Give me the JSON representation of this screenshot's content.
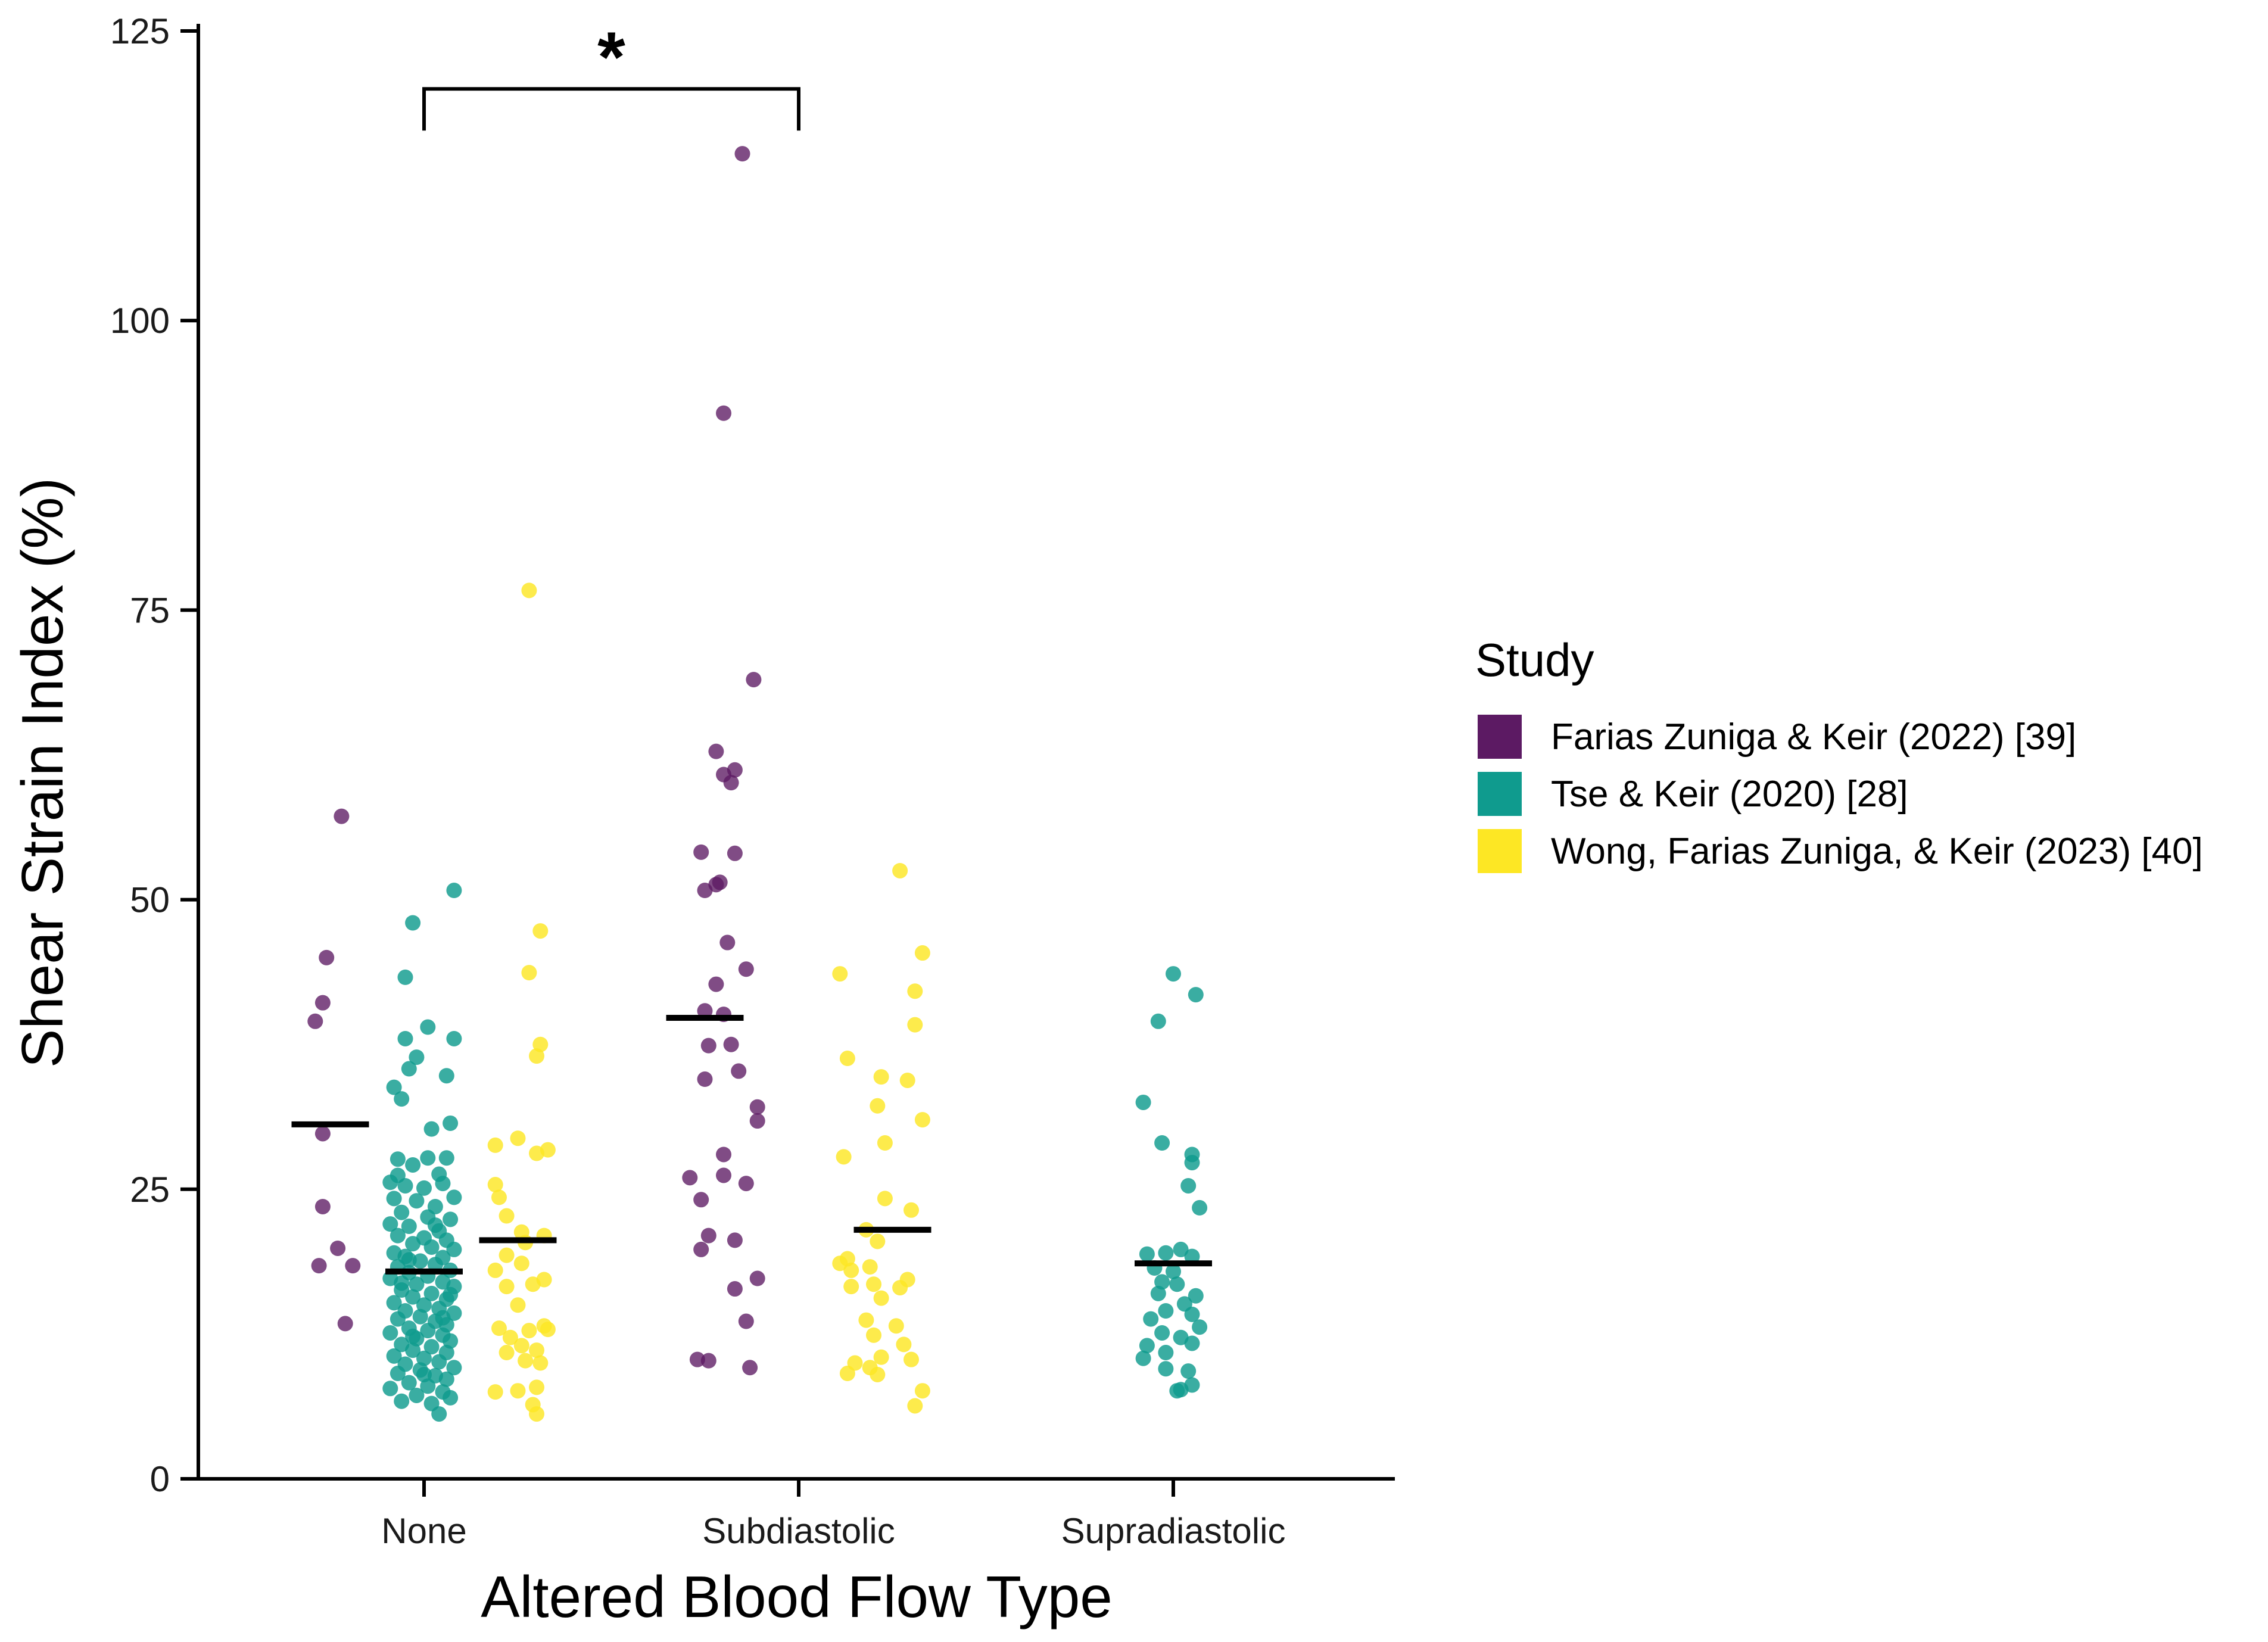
{
  "chart_data": {
    "type": "scatter",
    "title": "",
    "xlabel": "Altered Blood Flow Type",
    "ylabel": "Shear Strain Index (%)",
    "ylim": [
      0,
      125
    ],
    "yticks": [
      0,
      25,
      50,
      75,
      100,
      125
    ],
    "categories": [
      "None",
      "Subdiastolic",
      "Supradiastolic"
    ],
    "legend": {
      "title": "Study",
      "placement": "right",
      "entries": [
        {
          "name": "Farias Zuniga & Keir (2022) [39]",
          "color": "#5c1a63"
        },
        {
          "name": "Tse & Keir (2020) [28]",
          "color": "#0f9b8e"
        },
        {
          "name": "Wong, Farias Zuniga, & Keir (2023) [40]",
          "color": "#fde724"
        }
      ]
    },
    "significance": {
      "from": "None",
      "to": "Subdiastolic",
      "label": "*",
      "y": 120
    }
  },
  "series": [
    {
      "name": "Farias Zuniga & Keir (2022) [39]",
      "color": "#5c1a63",
      "category": "None",
      "offset": -0.25,
      "mean": 30.6,
      "points": [
        [
          -0.22,
          57.2
        ],
        [
          -0.26,
          45.0
        ],
        [
          -0.27,
          41.1
        ],
        [
          -0.29,
          39.5
        ],
        [
          -0.27,
          29.8
        ],
        [
          -0.27,
          23.5
        ],
        [
          -0.23,
          19.9
        ],
        [
          -0.28,
          18.4
        ],
        [
          -0.19,
          18.4
        ],
        [
          -0.21,
          13.4
        ]
      ]
    },
    {
      "name": "Tse & Keir (2020) [28]",
      "color": "#0f9b8e",
      "category": "None",
      "offset": 0.0,
      "mean": 17.9,
      "points": [
        [
          0.08,
          50.8
        ],
        [
          -0.03,
          48.0
        ],
        [
          -0.05,
          43.3
        ],
        [
          0.01,
          39.0
        ],
        [
          -0.05,
          38.0
        ],
        [
          0.08,
          38.0
        ],
        [
          -0.02,
          36.4
        ],
        [
          -0.04,
          35.4
        ],
        [
          0.06,
          34.8
        ],
        [
          -0.08,
          33.8
        ],
        [
          -0.06,
          32.8
        ],
        [
          0.02,
          30.2
        ],
        [
          0.07,
          30.7
        ],
        [
          -0.07,
          27.6
        ],
        [
          0.01,
          27.7
        ],
        [
          0.06,
          27.7
        ],
        [
          -0.03,
          27.1
        ],
        [
          0.04,
          26.3
        ],
        [
          -0.09,
          25.6
        ],
        [
          -0.05,
          25.3
        ],
        [
          0.0,
          25.1
        ],
        [
          0.05,
          25.5
        ],
        [
          0.08,
          24.3
        ],
        [
          -0.08,
          24.2
        ],
        [
          -0.02,
          24.0
        ],
        [
          0.03,
          23.5
        ],
        [
          -0.06,
          23.0
        ],
        [
          0.01,
          22.6
        ],
        [
          0.07,
          22.4
        ],
        [
          -0.09,
          22.0
        ],
        [
          -0.04,
          21.8
        ],
        [
          0.04,
          21.4
        ],
        [
          -0.07,
          21.0
        ],
        [
          0.0,
          20.8
        ],
        [
          0.06,
          20.6
        ],
        [
          -0.03,
          20.3
        ],
        [
          0.02,
          20.0
        ],
        [
          0.08,
          19.8
        ],
        [
          -0.08,
          19.5
        ],
        [
          -0.05,
          19.2
        ],
        [
          0.05,
          19.1
        ],
        [
          -0.01,
          18.8
        ],
        [
          0.03,
          18.5
        ],
        [
          -0.07,
          18.3
        ],
        [
          0.07,
          18.0
        ],
        [
          -0.04,
          17.8
        ],
        [
          0.01,
          17.5
        ],
        [
          -0.09,
          17.3
        ],
        [
          0.05,
          17.0
        ],
        [
          -0.02,
          16.8
        ],
        [
          0.08,
          16.6
        ],
        [
          -0.06,
          16.3
        ],
        [
          0.02,
          16.0
        ],
        [
          -0.03,
          15.7
        ],
        [
          0.06,
          15.5
        ],
        [
          -0.08,
          15.2
        ],
        [
          0.0,
          15.0
        ],
        [
          0.04,
          14.7
        ],
        [
          -0.05,
          14.5
        ],
        [
          0.08,
          14.3
        ],
        [
          -0.01,
          14.0
        ],
        [
          -0.07,
          13.8
        ],
        [
          0.03,
          13.6
        ],
        [
          0.06,
          13.3
        ],
        [
          -0.04,
          13.0
        ],
        [
          0.01,
          12.8
        ],
        [
          -0.09,
          12.6
        ],
        [
          0.05,
          12.4
        ],
        [
          -0.02,
          12.1
        ],
        [
          0.07,
          11.9
        ],
        [
          -0.06,
          11.6
        ],
        [
          0.02,
          11.4
        ],
        [
          -0.03,
          11.1
        ],
        [
          0.06,
          10.9
        ],
        [
          -0.08,
          10.6
        ],
        [
          0.0,
          10.4
        ],
        [
          0.04,
          10.1
        ],
        [
          -0.05,
          9.9
        ],
        [
          0.08,
          9.6
        ],
        [
          -0.01,
          9.4
        ],
        [
          -0.07,
          9.1
        ],
        [
          0.03,
          8.9
        ],
        [
          0.06,
          8.6
        ],
        [
          -0.04,
          8.3
        ],
        [
          0.01,
          8.0
        ],
        [
          -0.09,
          7.8
        ],
        [
          0.05,
          7.5
        ],
        [
          -0.02,
          7.2
        ],
        [
          0.07,
          7.0
        ],
        [
          -0.06,
          6.7
        ],
        [
          0.02,
          6.5
        ],
        [
          0.04,
          5.6
        ],
        [
          -0.03,
          12.3
        ],
        [
          0.05,
          13.9
        ],
        [
          -0.06,
          16.9
        ],
        [
          0.03,
          21.9
        ],
        [
          -0.07,
          26.2
        ],
        [
          0.0,
          9.0
        ],
        [
          0.07,
          15.9
        ],
        [
          -0.04,
          18.9
        ]
      ]
    },
    {
      "name": "Wong, Farias Zuniga, & Keir (2023) [40]",
      "color": "#fde724",
      "category": "None",
      "offset": 0.25,
      "mean": 20.6,
      "points": [
        [
          0.28,
          76.7
        ],
        [
          0.31,
          47.3
        ],
        [
          0.28,
          43.7
        ],
        [
          0.31,
          37.5
        ],
        [
          0.3,
          36.5
        ],
        [
          0.25,
          29.4
        ],
        [
          0.19,
          28.8
        ],
        [
          0.33,
          28.4
        ],
        [
          0.3,
          28.1
        ],
        [
          0.19,
          25.4
        ],
        [
          0.2,
          24.3
        ],
        [
          0.22,
          22.7
        ],
        [
          0.26,
          21.3
        ],
        [
          0.32,
          21.0
        ],
        [
          0.27,
          20.4
        ],
        [
          0.22,
          19.3
        ],
        [
          0.26,
          18.6
        ],
        [
          0.19,
          18.0
        ],
        [
          0.32,
          17.2
        ],
        [
          0.29,
          16.8
        ],
        [
          0.22,
          16.6
        ],
        [
          0.25,
          15.0
        ],
        [
          0.32,
          13.2
        ],
        [
          0.2,
          13.0
        ],
        [
          0.28,
          12.8
        ],
        [
          0.33,
          12.9
        ],
        [
          0.23,
          12.2
        ],
        [
          0.26,
          11.5
        ],
        [
          0.3,
          11.1
        ],
        [
          0.22,
          10.9
        ],
        [
          0.27,
          10.2
        ],
        [
          0.31,
          10.0
        ],
        [
          0.19,
          7.5
        ],
        [
          0.25,
          7.6
        ],
        [
          0.3,
          7.9
        ],
        [
          0.29,
          6.4
        ],
        [
          0.3,
          5.6
        ]
      ]
    },
    {
      "name": "Farias Zuniga & Keir (2022) [39]",
      "color": "#5c1a63",
      "category": "Subdiastolic",
      "offset": -0.25,
      "mean": 39.8,
      "points": [
        [
          -0.15,
          114.4
        ],
        [
          -0.2,
          92.0
        ],
        [
          -0.12,
          69.0
        ],
        [
          -0.22,
          62.8
        ],
        [
          -0.2,
          60.8
        ],
        [
          -0.17,
          61.2
        ],
        [
          -0.18,
          60.1
        ],
        [
          -0.26,
          54.1
        ],
        [
          -0.17,
          54.0
        ],
        [
          -0.21,
          51.5
        ],
        [
          -0.22,
          51.3
        ],
        [
          -0.25,
          50.8
        ],
        [
          -0.19,
          46.3
        ],
        [
          -0.14,
          44.0
        ],
        [
          -0.22,
          42.7
        ],
        [
          -0.25,
          40.4
        ],
        [
          -0.2,
          40.1
        ],
        [
          -0.24,
          37.4
        ],
        [
          -0.18,
          37.5
        ],
        [
          -0.25,
          34.5
        ],
        [
          -0.16,
          35.2
        ],
        [
          -0.11,
          32.1
        ],
        [
          -0.11,
          30.9
        ],
        [
          -0.2,
          28.0
        ],
        [
          -0.29,
          26.0
        ],
        [
          -0.2,
          26.2
        ],
        [
          -0.14,
          25.5
        ],
        [
          -0.26,
          24.1
        ],
        [
          -0.17,
          20.6
        ],
        [
          -0.24,
          21.0
        ],
        [
          -0.26,
          19.8
        ],
        [
          -0.11,
          17.3
        ],
        [
          -0.17,
          16.4
        ],
        [
          -0.14,
          13.6
        ],
        [
          -0.24,
          10.2
        ],
        [
          -0.27,
          10.3
        ],
        [
          -0.13,
          9.6
        ]
      ]
    },
    {
      "name": "Wong, Farias Zuniga, & Keir (2023) [40]",
      "color": "#fde724",
      "category": "Subdiastolic",
      "offset": 0.25,
      "mean": 21.5,
      "points": [
        [
          0.27,
          52.5
        ],
        [
          0.33,
          45.4
        ],
        [
          0.31,
          42.1
        ],
        [
          0.11,
          43.6
        ],
        [
          0.31,
          39.2
        ],
        [
          0.13,
          36.3
        ],
        [
          0.22,
          34.7
        ],
        [
          0.29,
          34.4
        ],
        [
          0.21,
          32.2
        ],
        [
          0.33,
          31.0
        ],
        [
          0.23,
          29.0
        ],
        [
          0.12,
          27.8
        ],
        [
          0.23,
          24.2
        ],
        [
          0.3,
          23.2
        ],
        [
          0.18,
          21.5
        ],
        [
          0.21,
          20.5
        ],
        [
          0.13,
          19.0
        ],
        [
          0.11,
          18.6
        ],
        [
          0.19,
          18.3
        ],
        [
          0.14,
          18.0
        ],
        [
          0.29,
          17.2
        ],
        [
          0.2,
          16.8
        ],
        [
          0.27,
          16.5
        ],
        [
          0.14,
          16.6
        ],
        [
          0.22,
          15.6
        ],
        [
          0.18,
          13.7
        ],
        [
          0.26,
          13.2
        ],
        [
          0.2,
          12.4
        ],
        [
          0.28,
          11.6
        ],
        [
          0.22,
          10.5
        ],
        [
          0.3,
          10.3
        ],
        [
          0.15,
          10.0
        ],
        [
          0.19,
          9.6
        ],
        [
          0.13,
          9.1
        ],
        [
          0.21,
          9.0
        ],
        [
          0.33,
          7.6
        ],
        [
          0.31,
          6.3
        ]
      ]
    },
    {
      "name": "Tse & Keir (2020) [28]",
      "color": "#0f9b8e",
      "category": "Supradiastolic",
      "offset": 0.0,
      "mean": 18.6,
      "points": [
        [
          0.0,
          43.6
        ],
        [
          0.06,
          41.8
        ],
        [
          -0.04,
          39.5
        ],
        [
          0.05,
          28.0
        ],
        [
          0.05,
          27.3
        ],
        [
          -0.03,
          29.0
        ],
        [
          -0.08,
          32.5
        ],
        [
          0.04,
          25.3
        ],
        [
          0.07,
          23.4
        ],
        [
          -0.07,
          19.4
        ],
        [
          -0.02,
          19.5
        ],
        [
          0.02,
          19.8
        ],
        [
          0.05,
          19.2
        ],
        [
          -0.05,
          18.2
        ],
        [
          0.0,
          17.9
        ],
        [
          -0.03,
          17.0
        ],
        [
          0.01,
          16.8
        ],
        [
          0.06,
          15.8
        ],
        [
          -0.04,
          16.0
        ],
        [
          0.03,
          15.1
        ],
        [
          -0.02,
          14.5
        ],
        [
          0.05,
          14.2
        ],
        [
          -0.06,
          13.8
        ],
        [
          0.07,
          13.1
        ],
        [
          -0.03,
          12.6
        ],
        [
          0.02,
          12.2
        ],
        [
          -0.07,
          11.5
        ],
        [
          0.05,
          11.7
        ],
        [
          -0.02,
          10.9
        ],
        [
          -0.08,
          10.4
        ],
        [
          0.04,
          9.3
        ],
        [
          -0.02,
          9.5
        ],
        [
          0.05,
          8.1
        ],
        [
          0.01,
          7.6
        ],
        [
          0.02,
          7.7
        ]
      ]
    }
  ]
}
